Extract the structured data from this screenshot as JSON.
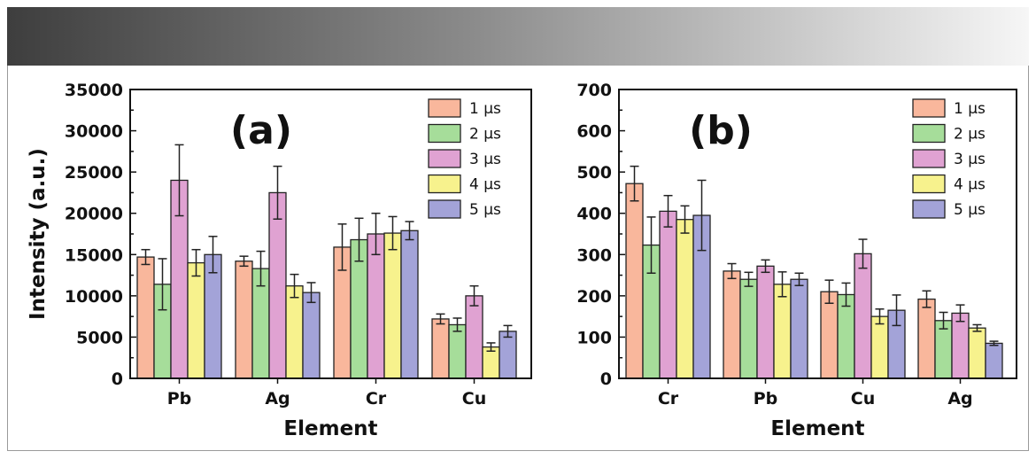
{
  "colors": {
    "series": [
      "#f9b79c",
      "#a6dd9a",
      "#e0a2d2",
      "#f7f28d",
      "#a3a3d8"
    ],
    "banner": [
      "#3e3e3e",
      "#f6f6f6"
    ]
  },
  "chart_data": [
    {
      "type": "bar",
      "panel_label": "(a)",
      "xlabel": "Element",
      "ylabel": "Intensity (a.u.)",
      "ylim": [
        0,
        35000
      ],
      "yticks": [
        0,
        5000,
        10000,
        15000,
        20000,
        25000,
        30000,
        35000
      ],
      "categories": [
        "Pb",
        "Ag",
        "Cr",
        "Cu"
      ],
      "legend_position": "top-right",
      "series": [
        {
          "name": "1 µs",
          "values": [
            14700,
            14200,
            15900,
            7200
          ],
          "errors": [
            900,
            600,
            2800,
            600
          ]
        },
        {
          "name": "2 µs",
          "values": [
            11400,
            13300,
            16800,
            6500
          ],
          "errors": [
            3100,
            2100,
            2600,
            800
          ]
        },
        {
          "name": "3 µs",
          "values": [
            24000,
            22500,
            17500,
            10000
          ],
          "errors": [
            4300,
            3200,
            2500,
            1200
          ]
        },
        {
          "name": "4 µs",
          "values": [
            14000,
            11200,
            17600,
            3800
          ],
          "errors": [
            1600,
            1400,
            2000,
            500
          ]
        },
        {
          "name": "5 µs",
          "values": [
            15000,
            10400,
            17900,
            5700
          ],
          "errors": [
            2200,
            1200,
            1100,
            700
          ]
        }
      ]
    },
    {
      "type": "bar",
      "panel_label": "(b)",
      "xlabel": "Element",
      "ylabel": "",
      "ylim": [
        0,
        700
      ],
      "yticks": [
        0,
        100,
        200,
        300,
        400,
        500,
        600,
        700
      ],
      "categories": [
        "Cr",
        "Pb",
        "Cu",
        "Ag"
      ],
      "legend_position": "top-right",
      "series": [
        {
          "name": "1 µs",
          "values": [
            472,
            260,
            210,
            192
          ],
          "errors": [
            42,
            18,
            28,
            20
          ]
        },
        {
          "name": "2 µs",
          "values": [
            323,
            240,
            203,
            140
          ],
          "errors": [
            68,
            17,
            28,
            20
          ]
        },
        {
          "name": "3 µs",
          "values": [
            405,
            272,
            302,
            158
          ],
          "errors": [
            38,
            15,
            35,
            20
          ]
        },
        {
          "name": "4 µs",
          "values": [
            385,
            228,
            150,
            122
          ],
          "errors": [
            33,
            30,
            18,
            8
          ]
        },
        {
          "name": "5 µs",
          "values": [
            395,
            240,
            165,
            85
          ],
          "errors": [
            85,
            15,
            37,
            5
          ]
        }
      ]
    }
  ]
}
